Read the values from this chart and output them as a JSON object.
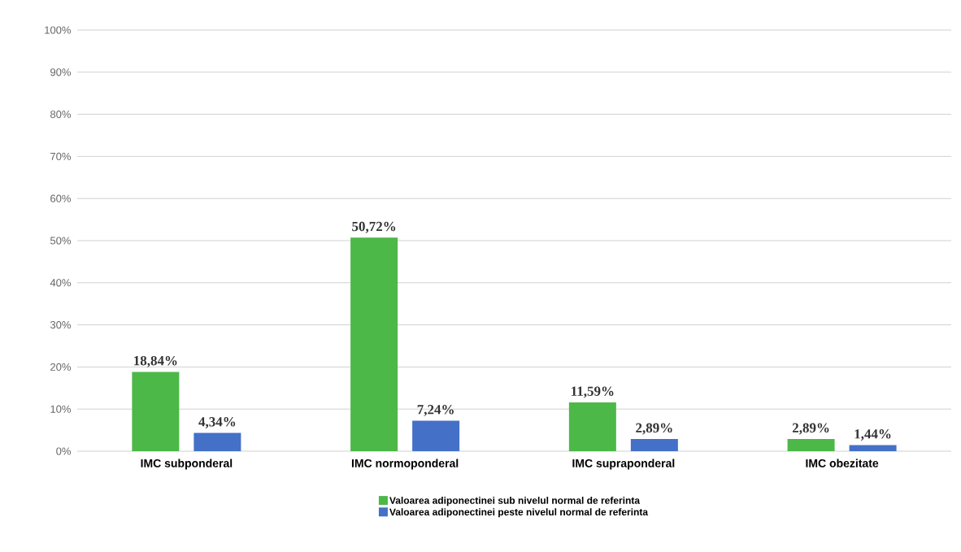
{
  "chart_data": {
    "type": "bar",
    "categories": [
      "IMC subponderal",
      "IMC normoponderal",
      "IMC supraponderal",
      "IMC obezitate"
    ],
    "series": [
      {
        "name": "Valoarea adiponectinei sub nivelul normal de referinta",
        "color": "#4cb848",
        "values": [
          18.84,
          50.72,
          11.59,
          2.89
        ],
        "value_labels": [
          "18,84%",
          "50,72%",
          "11,59%",
          "2,89%"
        ]
      },
      {
        "name": "Valoarea adiponectinei peste nivelul normal de referinta",
        "color": "#4470c8",
        "values": [
          4.34,
          7.24,
          2.89,
          1.44
        ],
        "value_labels": [
          "4,34%",
          "7,24%",
          "2,89%",
          "1,44%"
        ]
      }
    ],
    "ylim": [
      0,
      100
    ],
    "yticks": [
      {
        "value": 0,
        "label": "0%"
      },
      {
        "value": 10,
        "label": "10%"
      },
      {
        "value": 20,
        "label": "20%"
      },
      {
        "value": 30,
        "label": "30%"
      },
      {
        "value": 40,
        "label": "40%"
      },
      {
        "value": 50,
        "label": "50%"
      },
      {
        "value": 60,
        "label": "60%"
      },
      {
        "value": 70,
        "label": "70%"
      },
      {
        "value": 80,
        "label": "80%"
      },
      {
        "value": 90,
        "label": "90%"
      },
      {
        "value": 100,
        "label": "100%"
      }
    ],
    "grid": "y",
    "legend": "bottom"
  }
}
